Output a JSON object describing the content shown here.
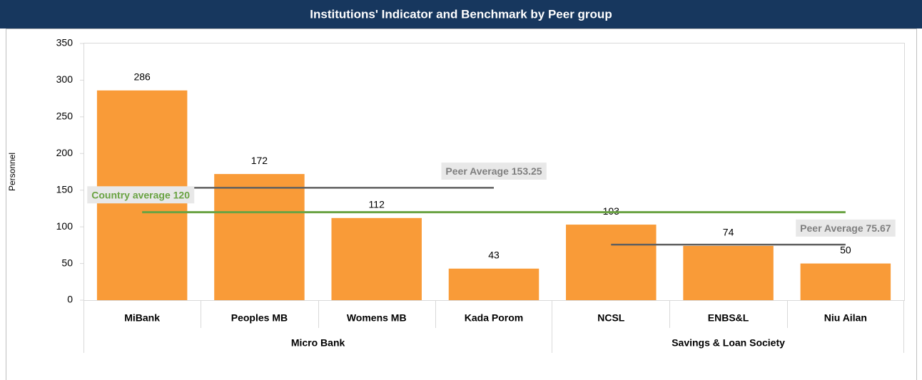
{
  "chart_data": {
    "type": "bar",
    "title": "Institutions' Indicator and Benchmark by Peer group",
    "y_label": "Personnel",
    "color": "#f99b38",
    "groups": [
      {
        "name": "Micro Bank",
        "categories": [
          "MiBank",
          "Peoples MB",
          "Womens MB",
          "Kada Porom"
        ],
        "peer_average": {
          "value": 153.25,
          "label": "Peer Average 153.25"
        }
      },
      {
        "name": "Savings & Loan Society",
        "categories": [
          "NCSL",
          "ENBS&L",
          "Niu Ailan"
        ],
        "peer_average": {
          "value": 75.67,
          "label": "Peer Average 75.67"
        }
      }
    ],
    "values": [
      286,
      172,
      112,
      43,
      103,
      74,
      50
    ],
    "country_average": {
      "value": 120,
      "label": "Country average 120",
      "color": "#6aa343"
    },
    "peer_color": "#5f5f5f",
    "ylim": [
      0,
      350
    ],
    "yticks": [
      0,
      50,
      100,
      150,
      200,
      250,
      300,
      350
    ],
    "grid": false
  }
}
